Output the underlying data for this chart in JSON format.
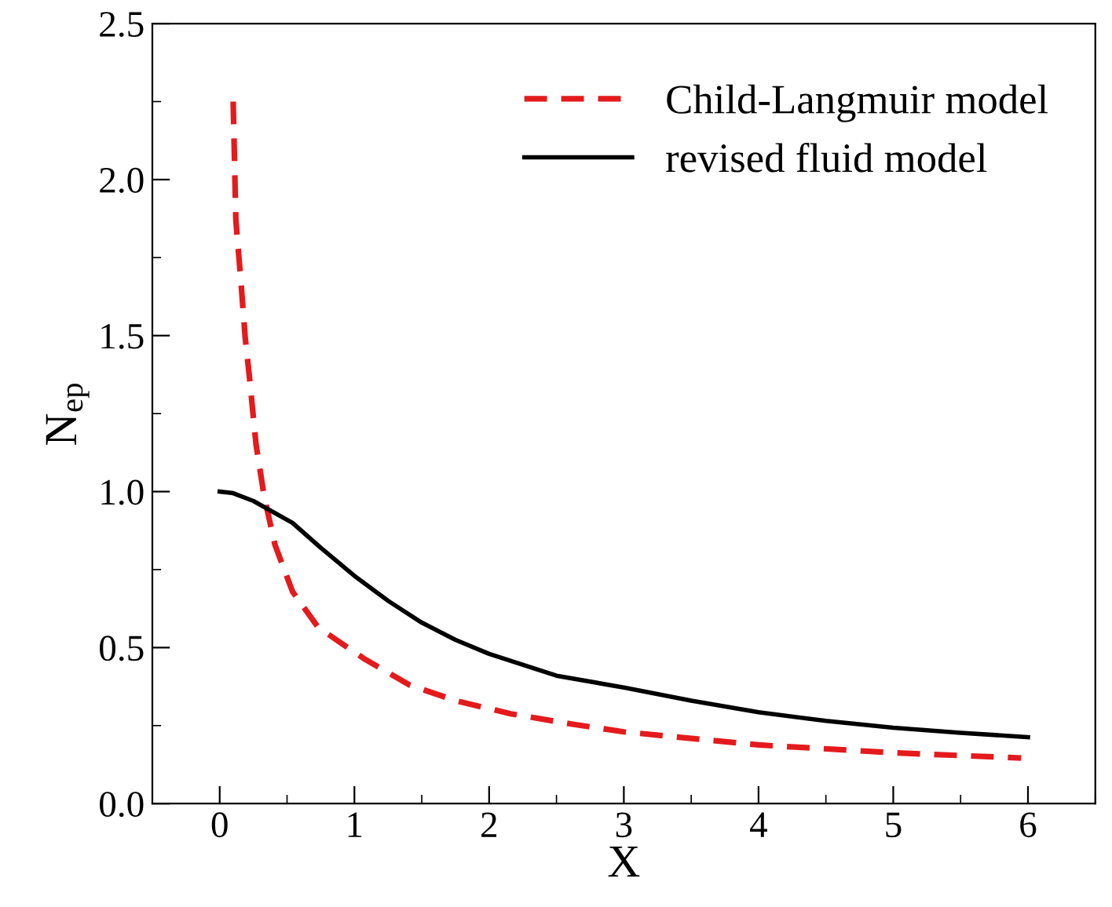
{
  "chart_data": {
    "type": "line",
    "xlabel": "X",
    "ylabel": "N$_{ep}$",
    "xlim": [
      -0.5,
      6.5
    ],
    "xticks": [
      0,
      1,
      2,
      3,
      4,
      5,
      6
    ],
    "ylim": [
      0,
      2.5
    ],
    "yticks": [
      {
        "value": 0,
        "label": "0.0"
      },
      {
        "value": 0.5,
        "label": "0.5"
      },
      {
        "value": 1,
        "label": "1.0"
      },
      {
        "value": 1.5,
        "label": "1.5"
      },
      {
        "value": 2,
        "label": "2.0"
      },
      {
        "value": 2.5,
        "label": "2.5"
      }
    ],
    "legend": "top right",
    "grid": false,
    "series": [
      {
        "name": "Child-Langmuir model",
        "color": "#e41a1c",
        "line_style": "dashed",
        "x": [
          0.1,
          0.12,
          0.16,
          0.19,
          0.22,
          0.27,
          0.33,
          0.41,
          0.54,
          0.73,
          1.07,
          1.41,
          1.75,
          2.16,
          2.61,
          3,
          4,
          5,
          5.95
        ],
        "values": [
          2.25,
          1.87,
          1.66,
          1.49,
          1.37,
          1.15,
          0.985,
          0.83,
          0.68,
          0.565,
          0.465,
          0.38,
          0.33,
          0.288,
          0.255,
          0.23,
          0.188,
          0.163,
          0.146
        ]
      },
      {
        "name": "revised fluid model",
        "color": "#000000",
        "line_style": "solid",
        "x": [
          0,
          0.1,
          0.25,
          0.54,
          0.75,
          1,
          1.25,
          1.5,
          1.75,
          2,
          2.5,
          3,
          3.5,
          4,
          4.5,
          5,
          5.5,
          6
        ],
        "values": [
          1.0,
          0.995,
          0.97,
          0.9,
          0.82,
          0.73,
          0.65,
          0.58,
          0.525,
          0.48,
          0.41,
          0.372,
          0.33,
          0.293,
          0.265,
          0.243,
          0.227,
          0.213
        ]
      }
    ]
  }
}
